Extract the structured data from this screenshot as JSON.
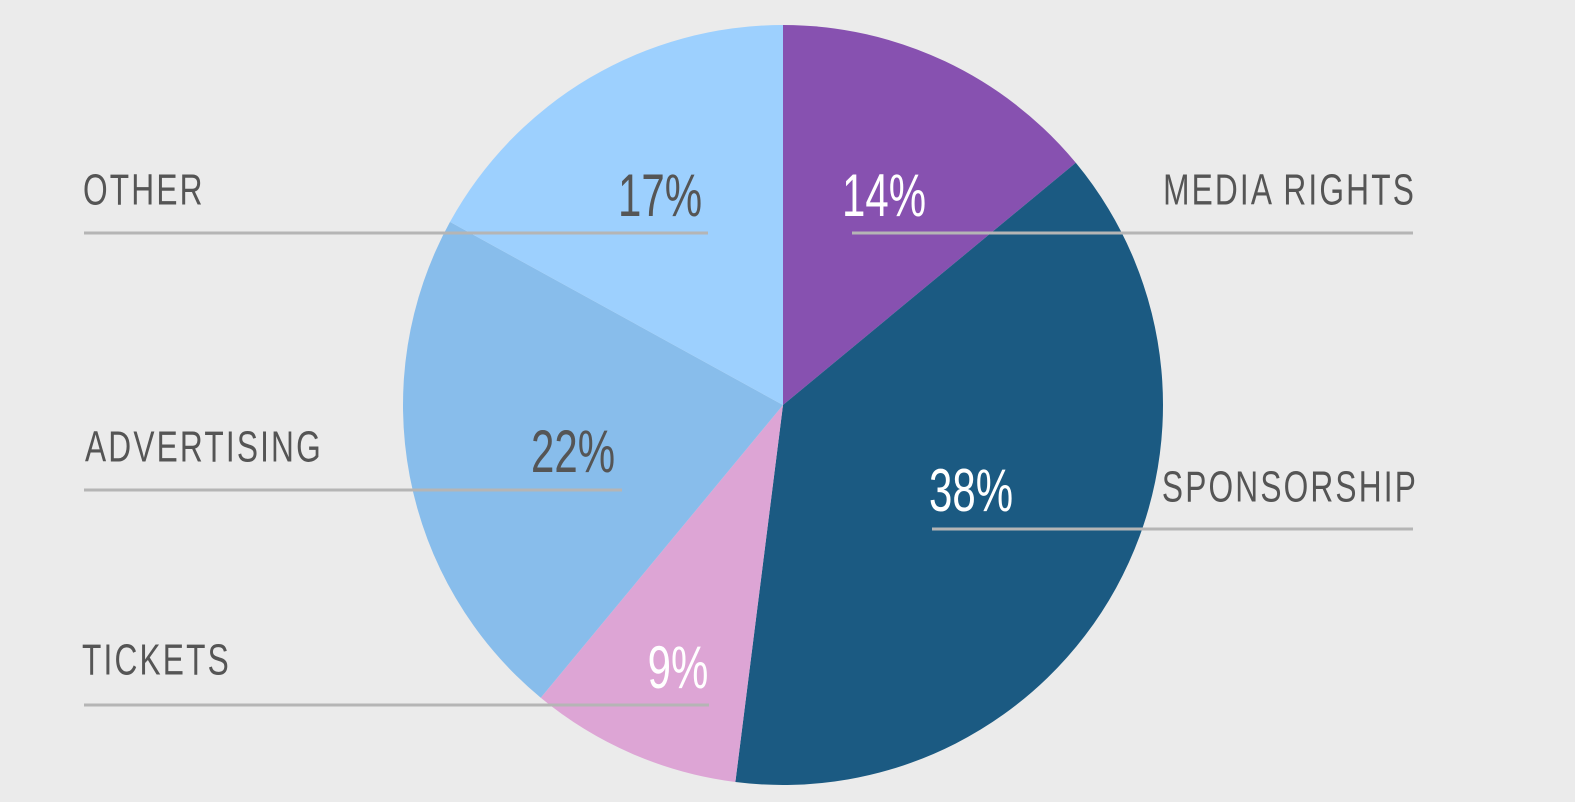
{
  "chart_data": {
    "type": "pie",
    "categories": [
      "MEDIA RIGHTS",
      "SPONSORSHIP",
      "TICKETS",
      "ADVERTISING",
      "OTHER"
    ],
    "values": [
      14,
      38,
      9,
      22,
      17
    ],
    "value_labels": [
      "14%",
      "38%",
      "9%",
      "22%",
      "17%"
    ],
    "colors": [
      "#8751b0",
      "#1b5a82",
      "#dda5d5",
      "#88bdeb",
      "#9dd0fe"
    ]
  }
}
